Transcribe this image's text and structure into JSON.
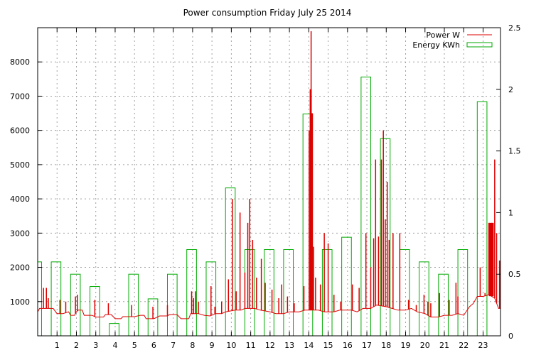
{
  "chart_data": {
    "type": "bar-line-combo",
    "title": "Power consumption Friday July 25 2014",
    "grid": true,
    "legend_placement": "top-right",
    "legend": [
      {
        "label": "Power W",
        "color": "#dd0000",
        "kind": "line"
      },
      {
        "label": "Energy KWh",
        "color": "#00aa00",
        "kind": "box"
      }
    ],
    "x_axis": {
      "range": [
        0,
        23.9
      ],
      "ticks": [
        1,
        2,
        3,
        4,
        5,
        6,
        7,
        8,
        9,
        10,
        11,
        12,
        13,
        14,
        15,
        16,
        17,
        18,
        19,
        20,
        21,
        22,
        23
      ]
    },
    "y_left": {
      "range": [
        0,
        9000
      ],
      "ticks": [
        1000,
        2000,
        3000,
        4000,
        5000,
        6000,
        7000,
        8000
      ],
      "tick_labels": [
        "1000",
        "2000",
        "3000",
        "4000",
        "5000",
        "6000",
        "7000",
        "8000"
      ]
    },
    "y_right": {
      "range": [
        0,
        2.5
      ],
      "ticks": [
        0,
        0.5,
        1,
        1.5,
        2,
        2.5
      ],
      "tick_labels": [
        "0",
        "0.5",
        "1",
        "1.5",
        "2",
        "2.5"
      ]
    },
    "series": [
      {
        "name": "Energy KWh",
        "axis": "right",
        "color": "#00aa00",
        "bars": [
          {
            "x0": 0.0,
            "x1": 0.2,
            "v": 0.6
          },
          {
            "x0": 0.7,
            "x1": 1.2,
            "v": 0.6
          },
          {
            "x0": 1.7,
            "x1": 2.2,
            "v": 0.5
          },
          {
            "x0": 2.7,
            "x1": 3.2,
            "v": 0.4
          },
          {
            "x0": 3.7,
            "x1": 4.2,
            "v": 0.1
          },
          {
            "x0": 4.7,
            "x1": 5.2,
            "v": 0.5
          },
          {
            "x0": 5.7,
            "x1": 6.2,
            "v": 0.3
          },
          {
            "x0": 6.7,
            "x1": 7.2,
            "v": 0.5
          },
          {
            "x0": 7.7,
            "x1": 8.2,
            "v": 0.7
          },
          {
            "x0": 8.7,
            "x1": 9.2,
            "v": 0.6
          },
          {
            "x0": 9.7,
            "x1": 10.2,
            "v": 1.2
          },
          {
            "x0": 10.7,
            "x1": 11.2,
            "v": 0.7
          },
          {
            "x0": 11.7,
            "x1": 12.2,
            "v": 0.7
          },
          {
            "x0": 12.7,
            "x1": 13.2,
            "v": 0.7
          },
          {
            "x0": 13.7,
            "x1": 14.2,
            "v": 1.8
          },
          {
            "x0": 14.7,
            "x1": 15.2,
            "v": 0.7
          },
          {
            "x0": 15.7,
            "x1": 16.2,
            "v": 0.8
          },
          {
            "x0": 16.7,
            "x1": 17.2,
            "v": 2.1
          },
          {
            "x0": 17.7,
            "x1": 18.2,
            "v": 1.6
          },
          {
            "x0": 18.7,
            "x1": 19.2,
            "v": 0.7
          },
          {
            "x0": 19.7,
            "x1": 20.2,
            "v": 0.6
          },
          {
            "x0": 20.7,
            "x1": 21.2,
            "v": 0.5
          },
          {
            "x0": 21.7,
            "x1": 22.2,
            "v": 0.7
          },
          {
            "x0": 22.7,
            "x1": 23.2,
            "v": 1.9
          }
        ]
      },
      {
        "name": "Power W",
        "axis": "left",
        "color": "#dd0000",
        "base": [
          [
            0.0,
            700
          ],
          [
            0.1,
            800
          ],
          [
            0.8,
            800
          ],
          [
            1.0,
            650
          ],
          [
            1.3,
            650
          ],
          [
            1.6,
            700
          ],
          [
            1.7,
            600
          ],
          [
            1.9,
            600
          ],
          [
            2.0,
            700
          ],
          [
            2.1,
            750
          ],
          [
            2.3,
            750
          ],
          [
            2.4,
            600
          ],
          [
            2.8,
            600
          ],
          [
            3.0,
            550
          ],
          [
            3.4,
            550
          ],
          [
            3.5,
            620
          ],
          [
            3.8,
            620
          ],
          [
            4.0,
            500
          ],
          [
            4.3,
            500
          ],
          [
            4.4,
            560
          ],
          [
            5.0,
            560
          ],
          [
            5.3,
            600
          ],
          [
            5.5,
            600
          ],
          [
            5.6,
            500
          ],
          [
            6.0,
            500
          ],
          [
            6.3,
            580
          ],
          [
            6.7,
            580
          ],
          [
            6.8,
            620
          ],
          [
            7.2,
            620
          ],
          [
            7.4,
            500
          ],
          [
            7.8,
            500
          ],
          [
            7.9,
            650
          ],
          [
            8.3,
            650
          ],
          [
            8.6,
            600
          ],
          [
            8.9,
            580
          ],
          [
            9.2,
            650
          ],
          [
            9.5,
            650
          ],
          [
            9.7,
            700
          ],
          [
            10.2,
            750
          ],
          [
            10.5,
            750
          ],
          [
            10.7,
            800
          ],
          [
            11.2,
            800
          ],
          [
            11.5,
            750
          ],
          [
            12.0,
            700
          ],
          [
            12.3,
            650
          ],
          [
            12.7,
            650
          ],
          [
            13.0,
            700
          ],
          [
            13.5,
            700
          ],
          [
            13.8,
            750
          ],
          [
            14.2,
            750
          ],
          [
            14.5,
            750
          ],
          [
            14.8,
            700
          ],
          [
            15.3,
            700
          ],
          [
            15.6,
            750
          ],
          [
            16.2,
            750
          ],
          [
            16.5,
            700
          ],
          [
            16.8,
            800
          ],
          [
            17.2,
            800
          ],
          [
            17.5,
            900
          ],
          [
            18.0,
            850
          ],
          [
            18.3,
            800
          ],
          [
            18.6,
            750
          ],
          [
            19.0,
            750
          ],
          [
            19.3,
            800
          ],
          [
            19.6,
            700
          ],
          [
            20.0,
            650
          ],
          [
            20.3,
            550
          ],
          [
            20.7,
            550
          ],
          [
            21.0,
            600
          ],
          [
            21.4,
            600
          ],
          [
            21.7,
            650
          ],
          [
            22.0,
            600
          ],
          [
            22.3,
            850
          ],
          [
            22.5,
            950
          ],
          [
            22.7,
            1150
          ],
          [
            23.0,
            1150
          ],
          [
            23.3,
            1200
          ],
          [
            23.6,
            1100
          ],
          [
            23.8,
            800
          ],
          [
            23.9,
            800
          ]
        ],
        "spikes": [
          [
            0.3,
            1400
          ],
          [
            0.45,
            1400
          ],
          [
            0.55,
            1100
          ],
          [
            1.15,
            1050
          ],
          [
            1.45,
            1000
          ],
          [
            1.95,
            1150
          ],
          [
            2.05,
            1200
          ],
          [
            2.95,
            1050
          ],
          [
            3.65,
            950
          ],
          [
            4.85,
            900
          ],
          [
            5.95,
            850
          ],
          [
            6.7,
            900
          ],
          [
            7.95,
            1300
          ],
          [
            8.05,
            1100
          ],
          [
            8.15,
            1300
          ],
          [
            8.3,
            1000
          ],
          [
            8.95,
            1450
          ],
          [
            9.15,
            850
          ],
          [
            9.5,
            1000
          ],
          [
            9.85,
            1650
          ],
          [
            10.05,
            4000
          ],
          [
            10.25,
            1300
          ],
          [
            10.45,
            3600
          ],
          [
            10.7,
            1850
          ],
          [
            10.85,
            3300
          ],
          [
            10.95,
            4000
          ],
          [
            11.1,
            2800
          ],
          [
            11.3,
            1700
          ],
          [
            11.55,
            2250
          ],
          [
            11.75,
            1550
          ],
          [
            12.1,
            1350
          ],
          [
            12.45,
            1100
          ],
          [
            12.6,
            1500
          ],
          [
            12.9,
            1150
          ],
          [
            13.25,
            950
          ],
          [
            13.75,
            1450
          ],
          [
            14.02,
            6000
          ],
          [
            14.08,
            7200
          ],
          [
            14.12,
            8900
          ],
          [
            14.18,
            6500
          ],
          [
            14.25,
            2600
          ],
          [
            14.35,
            1700
          ],
          [
            14.6,
            1500
          ],
          [
            14.8,
            3000
          ],
          [
            15.0,
            2700
          ],
          [
            15.3,
            1200
          ],
          [
            15.65,
            1000
          ],
          [
            16.25,
            1500
          ],
          [
            16.6,
            1400
          ],
          [
            16.95,
            3000
          ],
          [
            17.2,
            2000
          ],
          [
            17.35,
            2850
          ],
          [
            17.45,
            5150
          ],
          [
            17.6,
            2900
          ],
          [
            17.75,
            5150
          ],
          [
            17.85,
            6000
          ],
          [
            17.95,
            3400
          ],
          [
            18.05,
            4500
          ],
          [
            18.15,
            2800
          ],
          [
            18.35,
            3000
          ],
          [
            18.7,
            3000
          ],
          [
            19.15,
            1050
          ],
          [
            19.55,
            900
          ],
          [
            19.95,
            1200
          ],
          [
            20.15,
            1000
          ],
          [
            20.3,
            950
          ],
          [
            20.75,
            1250
          ],
          [
            21.25,
            1050
          ],
          [
            21.6,
            1550
          ],
          [
            21.7,
            1150
          ],
          [
            22.85,
            2000
          ],
          [
            23.1,
            1250
          ],
          [
            23.3,
            3300
          ],
          [
            23.45,
            3300
          ],
          [
            23.6,
            5150
          ],
          [
            23.7,
            3000
          ],
          [
            23.85,
            2200
          ]
        ],
        "bars": [
          {
            "x0": 14.05,
            "x1": 14.15,
            "v": 7200
          },
          {
            "x0": 23.3,
            "x1": 23.55,
            "v": 3300
          }
        ]
      }
    ]
  }
}
